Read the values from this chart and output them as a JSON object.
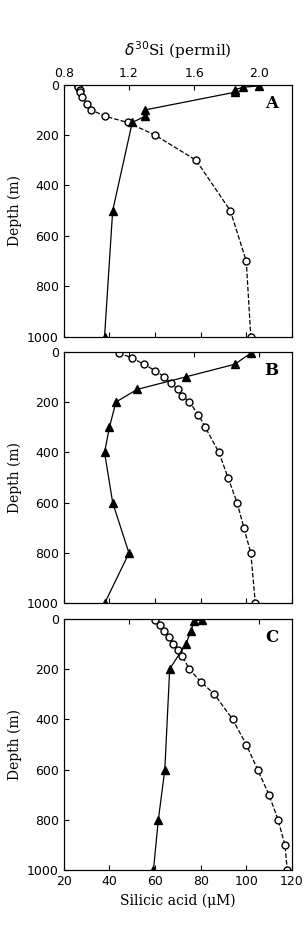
{
  "xlabel": "Silicic acid (μM)",
  "ylabel": "Depth (m)",
  "top_title": "$\\delta^{30}$Si (permil)",
  "silicic_xlim": [
    20,
    120
  ],
  "si_xlim": [
    0.8,
    2.2
  ],
  "depth_ylim": [
    1000,
    0
  ],
  "depth_ticks": [
    0,
    200,
    400,
    600,
    800,
    1000
  ],
  "si_xticks": [
    0.8,
    1.2,
    1.6,
    2.0
  ],
  "sil_xticks": [
    20,
    40,
    60,
    80,
    100,
    120
  ],
  "A_sil_depth": [
    5,
    10,
    20,
    30,
    50,
    75,
    100,
    125,
    150,
    200,
    300,
    500,
    700,
    1000
  ],
  "A_sil_conc": [
    26,
    26,
    27,
    27,
    28,
    30,
    32,
    38,
    48,
    60,
    78,
    93,
    100,
    102
  ],
  "A_d30si_depth": [
    5,
    10,
    20,
    30,
    100,
    125,
    150,
    500,
    1000
  ],
  "A_d30si_val": [
    2.0,
    1.9,
    1.85,
    1.85,
    1.3,
    1.3,
    1.22,
    1.1,
    1.05
  ],
  "B_sil_depth": [
    5,
    25,
    50,
    75,
    100,
    125,
    150,
    175,
    200,
    250,
    300,
    400,
    500,
    600,
    700,
    800,
    1000
  ],
  "B_sil_conc": [
    44,
    50,
    55,
    60,
    64,
    67,
    70,
    72,
    75,
    79,
    82,
    88,
    92,
    96,
    99,
    102,
    104
  ],
  "B_d30si_depth": [
    5,
    50,
    100,
    150,
    200,
    300,
    400,
    600,
    800,
    1000
  ],
  "B_d30si_val": [
    1.95,
    1.85,
    1.55,
    1.25,
    1.12,
    1.08,
    1.05,
    1.1,
    1.2,
    1.05
  ],
  "C_sil_depth": [
    5,
    25,
    50,
    75,
    100,
    125,
    150,
    200,
    250,
    300,
    400,
    500,
    600,
    700,
    800,
    900,
    1000
  ],
  "C_sil_conc": [
    60,
    62,
    64,
    66,
    68,
    70,
    72,
    75,
    80,
    86,
    94,
    100,
    105,
    110,
    114,
    117,
    118
  ],
  "C_d30si_depth": [
    5,
    10,
    50,
    100,
    200,
    600,
    800,
    1000
  ],
  "C_d30si_val": [
    1.65,
    1.6,
    1.58,
    1.55,
    1.45,
    1.42,
    1.38,
    1.35
  ],
  "marker_size_open": 5,
  "marker_size_solid": 6,
  "line_width": 0.9
}
